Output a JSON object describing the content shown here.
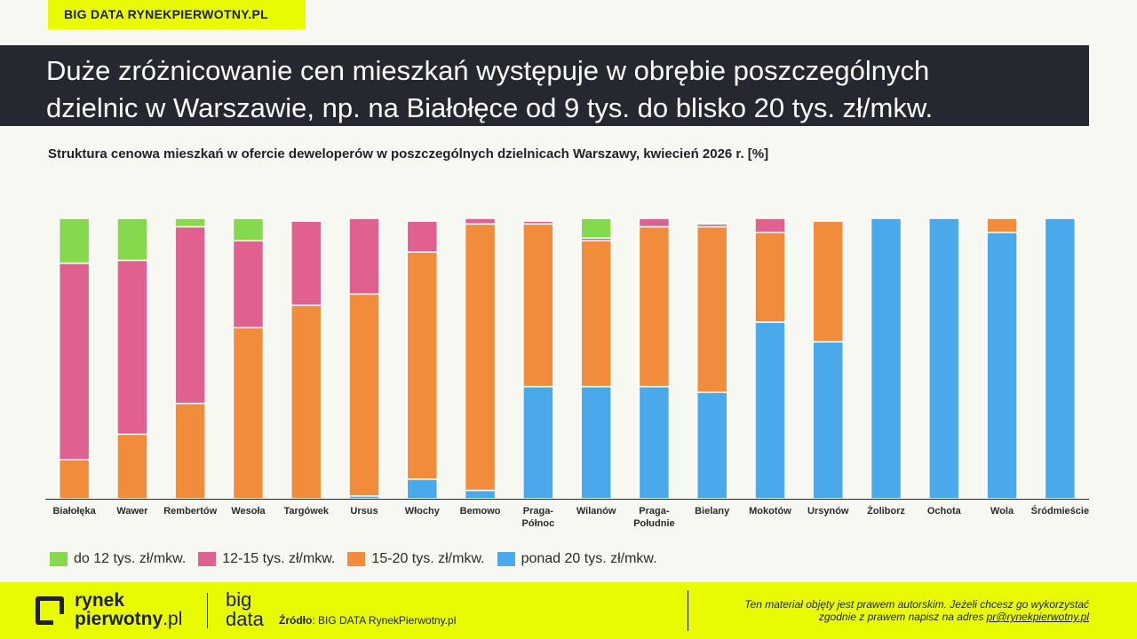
{
  "header": {
    "badge": "BIG DATA RYNEKPIERWOTNY.PL",
    "headline_line1": "Duże zróżnicowanie cen mieszkań występuje w obrębie poszczególnych",
    "headline_line2": "dzielnic w Warszawie, np. na Białołęce od 9 tys. do blisko 20 tys. zł/mkw."
  },
  "chart_data": {
    "type": "bar",
    "stacked": true,
    "title": "Struktura cenowa mieszkań w ofercie deweloperów w poszczególnych dzielnicach Warszawy,  kwiecień 2026 r. [%]",
    "ylim": [
      0,
      100
    ],
    "grid": false,
    "legend_position": "bottom-left",
    "categories": [
      "Białołęka",
      "Wawer",
      "Rembertów",
      "Wesoła",
      "Targówek",
      "Ursus",
      "Włochy",
      "Bemowo",
      "Praga-Północ",
      "Wilanów",
      "Praga-Południe",
      "Bielany",
      "Mokotów",
      "Ursynów",
      "Żoliborz",
      "Ochota",
      "Wola",
      "Śródmieście"
    ],
    "category_lines": [
      [
        "Białołęka"
      ],
      [
        "Wawer"
      ],
      [
        "Rembertów"
      ],
      [
        "Wesoła"
      ],
      [
        "Targówek"
      ],
      [
        "Ursus"
      ],
      [
        "Włochy"
      ],
      [
        "Bemowo"
      ],
      [
        "Praga-",
        "Północ"
      ],
      [
        "Wilanów"
      ],
      [
        "Praga-",
        "Południe"
      ],
      [
        "Bielany"
      ],
      [
        "Mokotów"
      ],
      [
        "Ursynów"
      ],
      [
        "Żoliborz"
      ],
      [
        "Ochota"
      ],
      [
        "Wola"
      ],
      [
        "Śródmieście"
      ]
    ],
    "series": [
      {
        "name": "ponad 20 tys. zł/mkw.",
        "color": "#4aa9ea",
        "values": [
          0,
          0,
          0,
          0,
          0,
          1,
          7,
          3,
          40,
          40,
          40,
          38,
          63,
          56,
          100,
          100,
          95,
          100
        ]
      },
      {
        "name": "15-20 tys. zł/mkw.",
        "color": "#f08c3c",
        "values": [
          14,
          23,
          34,
          61,
          69,
          72,
          81,
          95,
          58,
          52,
          57,
          59,
          32,
          43,
          0,
          0,
          5,
          0
        ]
      },
      {
        "name": "12-15 tys. zł/mkw.",
        "color": "#e06090",
        "values": [
          70,
          62,
          63,
          31,
          30,
          27,
          11,
          2,
          1,
          1,
          3,
          1,
          5,
          0,
          0,
          0,
          0,
          0
        ]
      },
      {
        "name": "do 12 tys. zł/mkw.",
        "color": "#86d84d",
        "values": [
          16,
          15,
          3,
          8,
          0,
          0,
          0,
          0,
          0,
          7,
          0,
          0,
          0,
          0,
          0,
          0,
          0,
          0
        ]
      }
    ]
  },
  "legend": [
    {
      "label": "do 12 tys. zł/mkw.",
      "color": "#86d84d"
    },
    {
      "label": "12-15 tys. zł/mkw.",
      "color": "#e06090"
    },
    {
      "label": "15-20 tys. zł/mkw.",
      "color": "#f08c3c"
    },
    {
      "label": "ponad 20 tys. zł/mkw.",
      "color": "#4aa9ea"
    }
  ],
  "footer": {
    "logo_line1": "rynek",
    "logo_line2_bold": "pierwotny",
    "logo_line2_suffix": ".pl",
    "bigdata_line1": "big",
    "bigdata_line2": "data",
    "source_label": "Źródło",
    "source_text": ": BIG DATA RynekPierwotny.pl",
    "copyright_line1": "Ten materiał objęty jest prawem autorskim. Jeżeli chcesz go wykorzystać",
    "copyright_line2_prefix": "zgodnie z prawem napisz na adres ",
    "copyright_email": "pr@rynekpierwotny.pl"
  }
}
